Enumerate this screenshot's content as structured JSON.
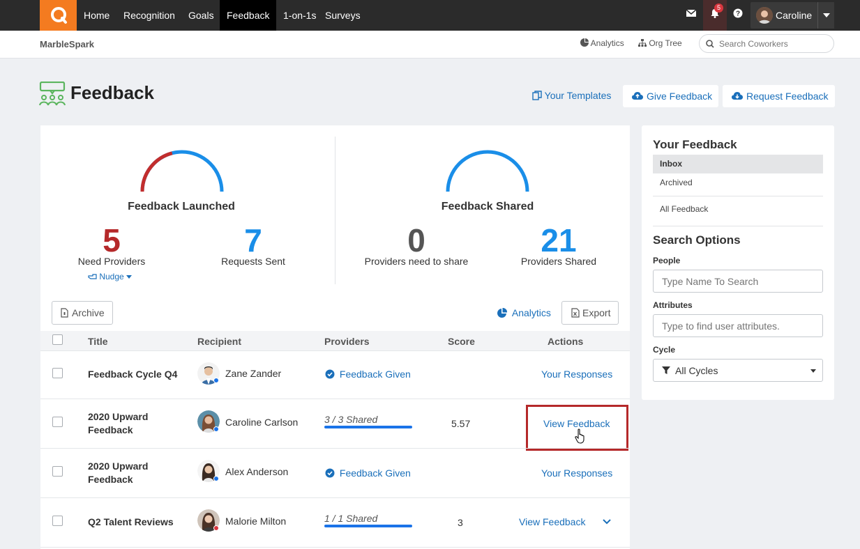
{
  "nav": {
    "items": [
      {
        "label": "Home"
      },
      {
        "label": "Recognition"
      },
      {
        "label": "Goals"
      },
      {
        "label": "Feedback"
      },
      {
        "label": "1-on-1s"
      },
      {
        "label": "Surveys"
      }
    ],
    "notification_count": "5",
    "user_name": "Caroline"
  },
  "subbar": {
    "org_name": "MarbleSpark",
    "analytics_label": "Analytics",
    "org_tree_label": "Org Tree",
    "search_placeholder": "Search Coworkers"
  },
  "header": {
    "title": "Feedback",
    "templates_label": "Your Templates",
    "give_label": "Give Feedback",
    "request_label": "Request Feedback"
  },
  "stats": {
    "launched": {
      "title": "Feedback Launched",
      "need_providers": "5",
      "need_providers_label": "Need Providers",
      "nudge_label": "Nudge",
      "requests_sent": "7",
      "requests_sent_label": "Requests Sent",
      "gauge_fraction_need": 0.42
    },
    "shared": {
      "title": "Feedback Shared",
      "need_share": "0",
      "need_share_label": "Providers need to share",
      "providers_shared": "21",
      "providers_shared_label": "Providers Shared",
      "gauge_fraction_need": 0.0
    }
  },
  "toolbar": {
    "archive_label": "Archive",
    "analytics_label": "Analytics",
    "export_label": "Export"
  },
  "table": {
    "columns": [
      "Title",
      "Recipient",
      "Providers",
      "Score",
      "Actions"
    ],
    "rows": [
      {
        "title": "Feedback Cycle Q4",
        "recipient": "Zane Zander",
        "providers": "Feedback Given",
        "score": "",
        "action": "Your Responses"
      },
      {
        "title_line1": "2020 Upward",
        "title_line2": "Feedback",
        "recipient": "Caroline Carlson",
        "providers": "3 / 3 Shared",
        "score": "5.57",
        "action": "View Feedback"
      },
      {
        "title_line1": "2020 Upward",
        "title_line2": "Feedback",
        "recipient": "Alex Anderson",
        "providers": "Feedback Given",
        "score": "",
        "action": "Your Responses"
      },
      {
        "title": "Q2 Talent Reviews",
        "recipient": "Malorie Milton",
        "providers": "1 / 1 Shared",
        "score": "3",
        "action": "View Feedback"
      }
    ]
  },
  "sidebar": {
    "heading": "Your Feedback",
    "items": [
      {
        "label": "Inbox"
      },
      {
        "label": "Archived"
      },
      {
        "label": "All Feedback"
      }
    ],
    "search_heading": "Search Options",
    "people_label": "People",
    "people_placeholder": "Type Name To Search",
    "attributes_label": "Attributes",
    "attributes_placeholder": "Type to find user attributes.",
    "cycle_label": "Cycle",
    "cycle_value": "All Cycles"
  },
  "colors": {
    "accent": "#1a6fba",
    "brand_orange": "#f47b20",
    "danger": "#b5292a",
    "gauge_blue": "#1a8ee8"
  }
}
